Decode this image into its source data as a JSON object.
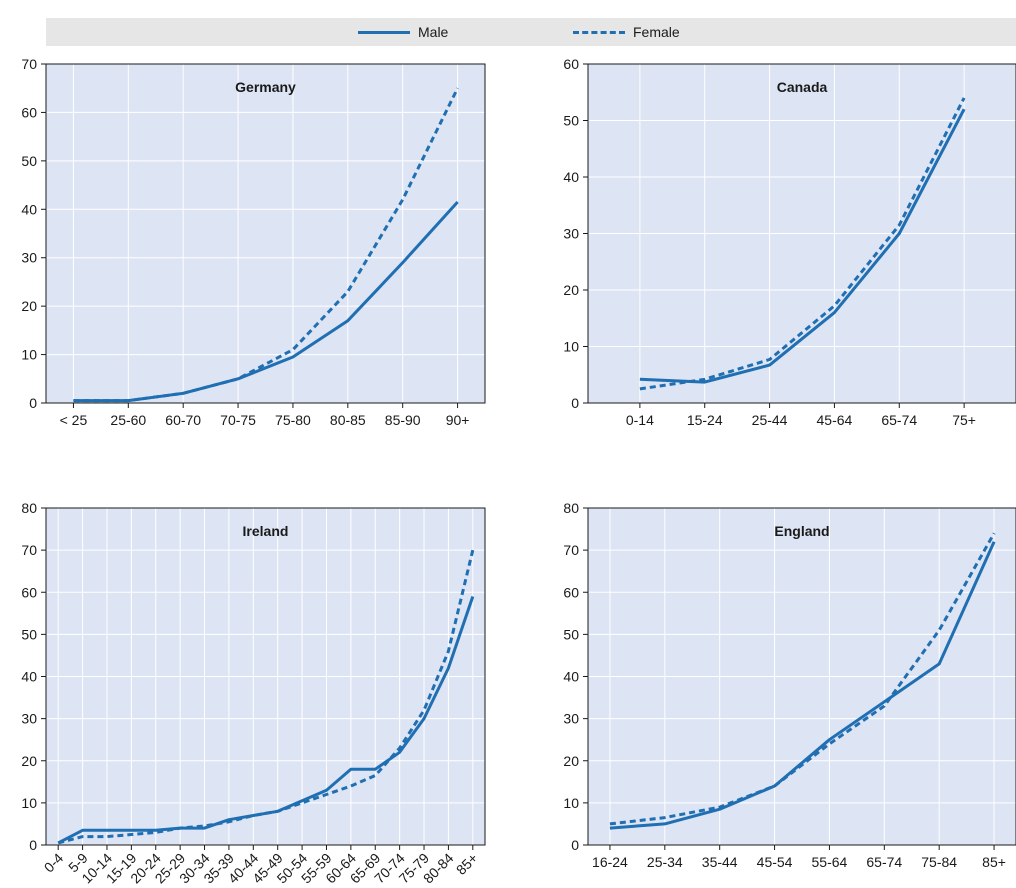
{
  "legend": {
    "male_label": "Male",
    "female_label": "Female"
  },
  "colors": {
    "line": "#1f6fb2",
    "plot_bg": "#dde4f4",
    "grid": "#ffffff",
    "legend_bg": "#e6e6e6"
  },
  "chart_data": [
    {
      "type": "line",
      "title": "Germany",
      "categories": [
        "< 25",
        "25-60",
        "60-70",
        "70-75",
        "75-80",
        "80-85",
        "85-90",
        "90+"
      ],
      "ylim": [
        0,
        70
      ],
      "yticks": [
        0,
        10,
        20,
        30,
        40,
        50,
        60,
        70
      ],
      "grid": true,
      "legend_position": "top",
      "series": [
        {
          "name": "Male",
          "style": "solid",
          "values": [
            0.5,
            0.5,
            2,
            5,
            9.5,
            17,
            29,
            41.5
          ]
        },
        {
          "name": "Female",
          "style": "dashed",
          "values": [
            0.5,
            0.5,
            2,
            5,
            11,
            23,
            42,
            65
          ]
        }
      ]
    },
    {
      "type": "line",
      "title": "Canada",
      "categories": [
        "0-14",
        "15-24",
        "25-44",
        "45-64",
        "65-74",
        "75+"
      ],
      "ylim": [
        0,
        60
      ],
      "yticks": [
        0,
        10,
        20,
        30,
        40,
        50,
        60
      ],
      "grid": true,
      "series": [
        {
          "name": "Male",
          "style": "solid",
          "values": [
            4.2,
            3.7,
            6.7,
            16,
            30,
            52
          ]
        },
        {
          "name": "Female",
          "style": "dashed",
          "values": [
            2.5,
            4.2,
            7.7,
            17.2,
            31.5,
            54
          ]
        }
      ]
    },
    {
      "type": "line",
      "title": "Ireland",
      "categories": [
        "0-4",
        "5-9",
        "10-14",
        "15-19",
        "20-24",
        "25-29",
        "30-34",
        "35-39",
        "40-44",
        "45-49",
        "50-54",
        "55-59",
        "60-64",
        "65-69",
        "70-74",
        "75-79",
        "80-84",
        "85+"
      ],
      "ylim": [
        0,
        80
      ],
      "yticks": [
        0,
        10,
        20,
        30,
        40,
        50,
        60,
        70,
        80
      ],
      "grid": true,
      "series": [
        {
          "name": "Male",
          "style": "solid",
          "values": [
            0.5,
            3.5,
            3.5,
            3.5,
            3.5,
            4,
            4,
            6,
            7,
            8,
            10.5,
            13,
            18,
            18,
            22,
            30,
            42,
            59
          ]
        },
        {
          "name": "Female",
          "style": "dashed",
          "values": [
            0.5,
            2,
            2,
            2.5,
            3,
            4,
            4.5,
            5.5,
            7,
            8,
            10,
            12,
            14,
            16.5,
            23,
            32,
            46,
            70
          ]
        }
      ]
    },
    {
      "type": "line",
      "title": "England",
      "categories": [
        "16-24",
        "25-34",
        "35-44",
        "45-54",
        "55-64",
        "65-74",
        "75-84",
        "85+"
      ],
      "ylim": [
        0,
        80
      ],
      "yticks": [
        0,
        10,
        20,
        30,
        40,
        50,
        60,
        70,
        80
      ],
      "grid": true,
      "series": [
        {
          "name": "Male",
          "style": "solid",
          "values": [
            4,
            5,
            8.5,
            14,
            25,
            34,
            43,
            72
          ]
        },
        {
          "name": "Female",
          "style": "dashed",
          "values": [
            5,
            6.5,
            9,
            14,
            24,
            33,
            51,
            74
          ]
        }
      ]
    }
  ]
}
